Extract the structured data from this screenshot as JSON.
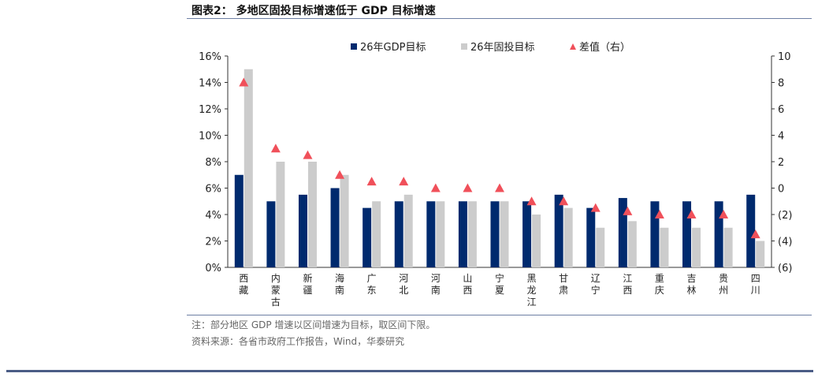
{
  "figure_title": "图表2： 多地区固投目标增速低于 GDP 目标增速",
  "note": "注：部分地区 GDP 增速以区间增速为目标，取区间下限。",
  "source": "资料来源：各省市政府工作报告，Wind，华泰研究",
  "chart_data": {
    "type": "bar",
    "categories": [
      "西藏",
      "内蒙古",
      "新疆",
      "海南",
      "广东",
      "河北",
      "河南",
      "山西",
      "宁夏",
      "黑龙江",
      "甘肃",
      "辽宁",
      "江西",
      "重庆",
      "吉林",
      "贵州",
      "四川"
    ],
    "series": [
      {
        "name": "26年GDP目标",
        "type": "bar",
        "axis": "left",
        "color": "#002a6e",
        "values": [
          7.0,
          5.0,
          5.5,
          6.0,
          4.5,
          5.0,
          5.0,
          5.0,
          5.0,
          5.0,
          5.5,
          4.5,
          5.25,
          5.0,
          5.0,
          5.0,
          5.5
        ]
      },
      {
        "name": "26年固投目标",
        "type": "bar",
        "axis": "left",
        "color": "#cccccc",
        "values": [
          15.0,
          8.0,
          8.0,
          7.0,
          5.0,
          5.5,
          5.0,
          5.0,
          5.0,
          4.0,
          4.5,
          3.0,
          3.5,
          3.0,
          3.0,
          3.0,
          2.0
        ]
      },
      {
        "name": "差值（右）",
        "type": "scatter",
        "marker": "triangle",
        "axis": "right",
        "color": "#f0505a",
        "values": [
          8.0,
          3.0,
          2.5,
          1.0,
          0.5,
          0.5,
          0.0,
          0.0,
          0.0,
          -1.0,
          -1.0,
          -1.5,
          -1.75,
          -2.0,
          -2.0,
          -2.0,
          -3.5
        ]
      }
    ],
    "y_left": {
      "lim": [
        0,
        16
      ],
      "ticks": [
        "0%",
        "2%",
        "4%",
        "6%",
        "8%",
        "10%",
        "12%",
        "14%",
        "16%"
      ]
    },
    "y_right": {
      "lim": [
        -6,
        10
      ],
      "ticks": [
        "(6)",
        "(4)",
        "(2)",
        "0",
        "2",
        "4",
        "6",
        "8",
        "10"
      ]
    },
    "legend_position": "top",
    "grid": false
  }
}
